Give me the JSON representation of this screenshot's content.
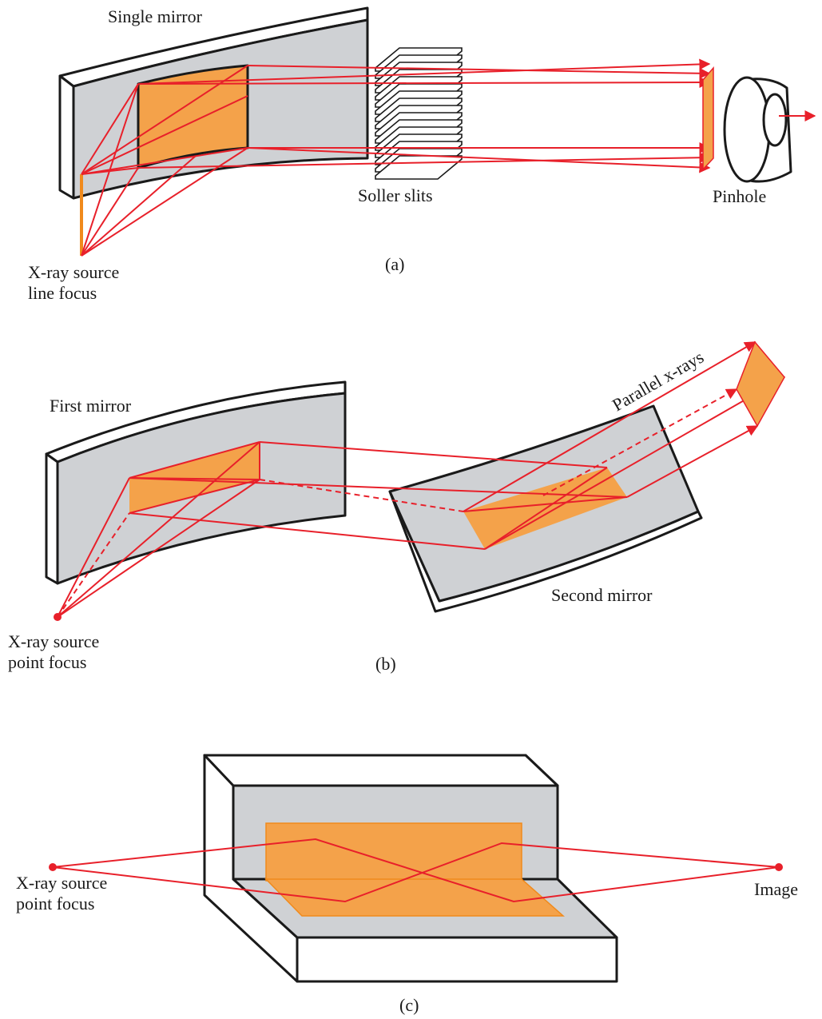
{
  "panel_a": {
    "single_mirror": "Single mirror",
    "soller_slits": "Soller slits",
    "pinhole": "Pinhole",
    "source_line1": "X-ray source",
    "source_line2": "line focus",
    "caption": "(a)"
  },
  "panel_b": {
    "first_mirror": "First mirror",
    "parallel_xrays": "Parallel x-rays",
    "second_mirror": "Second mirror",
    "source_line1": "X-ray source",
    "source_line2": "point focus",
    "caption": "(b)"
  },
  "panel_c": {
    "source_line1": "X-ray source",
    "source_line2": "point focus",
    "image": "Image",
    "caption": "(c)"
  },
  "colors": {
    "ray": "#e8202a",
    "mirror_surface": "#cfd1d4",
    "reflection_patch": "#f4a24a",
    "outline": "#1a1a1a"
  }
}
